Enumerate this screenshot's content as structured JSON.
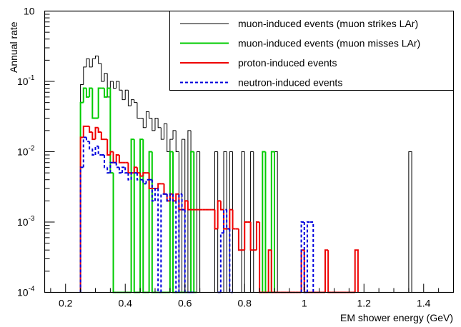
{
  "chart_data": {
    "type": "line",
    "subtype": "step-histogram",
    "title": "",
    "xlabel": "EM shower energy (GeV)",
    "ylabel": "Annual rate",
    "xlim": [
      0.13,
      1.5
    ],
    "ylim": [
      0.0001,
      1
    ],
    "yscale": "log",
    "grid": false,
    "legend_position": "top-right",
    "bin_width": 0.01,
    "x_ticks": [
      "0.2",
      "0.4",
      "0.6",
      "0.8",
      "1",
      "1.2",
      "1.4"
    ],
    "x_tick_values": [
      0.2,
      0.4,
      0.6,
      0.8,
      1.0,
      1.2,
      1.4
    ],
    "y_tick_mantissa": [
      "10",
      "10",
      "10",
      "10",
      "10"
    ],
    "y_tick_exponent": [
      "-4",
      "-3",
      "-2",
      "-1",
      ""
    ],
    "y_tick_values": [
      0.0001,
      0.001,
      0.01,
      0.1,
      1
    ],
    "series": [
      {
        "name": "muon-induced events (muon strikes LAr)",
        "color": "#000000",
        "dash": "solid",
        "bins": [
          [
            0.25,
            0.09
          ],
          [
            0.26,
            0.16
          ],
          [
            0.27,
            0.21
          ],
          [
            0.28,
            0.16
          ],
          [
            0.29,
            0.21
          ],
          [
            0.3,
            0.23
          ],
          [
            0.31,
            0.18
          ],
          [
            0.32,
            0.1
          ],
          [
            0.33,
            0.13
          ],
          [
            0.34,
            0.06
          ],
          [
            0.35,
            0.1
          ],
          [
            0.36,
            0.08
          ],
          [
            0.37,
            0.1
          ],
          [
            0.38,
            0.075
          ],
          [
            0.39,
            0.055
          ],
          [
            0.4,
            0.075
          ],
          [
            0.41,
            0.045
          ],
          [
            0.42,
            0.055
          ],
          [
            0.43,
            0.05
          ],
          [
            0.44,
            0.03
          ],
          [
            0.45,
            0.03
          ],
          [
            0.46,
            0.022
          ],
          [
            0.47,
            0.037
          ],
          [
            0.48,
            0.03
          ],
          [
            0.49,
            0.02
          ],
          [
            0.5,
            0.03
          ],
          [
            0.51,
            0.022
          ],
          [
            0.52,
            0.015
          ],
          [
            0.53,
            0.025
          ],
          [
            0.54,
            0.01
          ],
          [
            0.55,
            0.015
          ],
          [
            0.56,
            0.02
          ],
          [
            0.57,
            0.01
          ],
          [
            0.58,
            0.0001
          ],
          [
            0.59,
            0.015
          ],
          [
            0.6,
            0.0001
          ],
          [
            0.61,
            0.02
          ],
          [
            0.62,
            0.01
          ],
          [
            0.63,
            0.0001
          ],
          [
            0.64,
            0.01
          ],
          [
            0.65,
            0.0001
          ],
          [
            0.66,
            0.0001
          ],
          [
            0.67,
            0.0001
          ],
          [
            0.68,
            0.0001
          ],
          [
            0.69,
            0.0001
          ],
          [
            0.7,
            0.01
          ],
          [
            0.71,
            0.0001
          ],
          [
            0.72,
            0.0001
          ],
          [
            0.73,
            0.01
          ],
          [
            0.74,
            0.0001
          ],
          [
            0.75,
            0.01
          ],
          [
            0.76,
            0.0001
          ],
          [
            0.77,
            0.0001
          ],
          [
            0.78,
            0.0001
          ],
          [
            0.79,
            0.01
          ],
          [
            0.8,
            0.0001
          ],
          [
            0.81,
            0.0001
          ],
          [
            0.82,
            0.01
          ],
          [
            0.83,
            0.0001
          ],
          [
            0.84,
            0.0001
          ],
          [
            0.85,
            0.0001
          ],
          [
            0.86,
            0.0001
          ],
          [
            0.87,
            0.0001
          ],
          [
            0.88,
            0.0001
          ],
          [
            0.89,
            0.0001
          ],
          [
            0.9,
            0.01
          ],
          [
            1.35,
            0.01
          ]
        ]
      },
      {
        "name": "muon-induced events (muon misses LAr)",
        "color": "#00cc00",
        "dash": "solid",
        "bins": [
          [
            0.25,
            0.05
          ],
          [
            0.26,
            0.08
          ],
          [
            0.27,
            0.06
          ],
          [
            0.28,
            0.08
          ],
          [
            0.29,
            0.03
          ],
          [
            0.3,
            0.03
          ],
          [
            0.31,
            0.08
          ],
          [
            0.32,
            0.08
          ],
          [
            0.33,
            0.06
          ],
          [
            0.34,
            0.08
          ],
          [
            0.35,
            0.005
          ],
          [
            0.36,
            0.0001
          ],
          [
            0.37,
            0.0001
          ],
          [
            0.38,
            0.0001
          ],
          [
            0.39,
            0.0001
          ],
          [
            0.4,
            0.0001
          ],
          [
            0.41,
            0.0001
          ],
          [
            0.42,
            0.015
          ],
          [
            0.43,
            0.0001
          ],
          [
            0.44,
            0.0001
          ],
          [
            0.45,
            0.015
          ],
          [
            0.46,
            0.0001
          ],
          [
            0.47,
            0.0001
          ],
          [
            0.48,
            0.01
          ],
          [
            0.49,
            0.0001
          ],
          [
            0.5,
            0.0001
          ],
          [
            0.51,
            0.0001
          ],
          [
            0.52,
            0.0001
          ],
          [
            0.53,
            0.0001
          ],
          [
            0.54,
            0.0001
          ],
          [
            0.55,
            0.01
          ],
          [
            0.56,
            0.0001
          ],
          [
            0.57,
            0.0001
          ],
          [
            0.58,
            0.0001
          ],
          [
            0.59,
            0.0001
          ],
          [
            0.6,
            0.0001
          ],
          [
            0.61,
            0.0001
          ],
          [
            0.62,
            0.01
          ],
          [
            0.63,
            0.0001
          ],
          [
            0.86,
            0.01
          ],
          [
            0.87,
            0.0001
          ],
          [
            0.88,
            0.0001
          ],
          [
            0.89,
            0.01
          ]
        ]
      },
      {
        "name": "proton-induced events",
        "color": "#ee0000",
        "dash": "solid",
        "bins": [
          [
            0.25,
            0.016
          ],
          [
            0.26,
            0.023
          ],
          [
            0.27,
            0.023
          ],
          [
            0.28,
            0.019
          ],
          [
            0.29,
            0.015
          ],
          [
            0.3,
            0.022
          ],
          [
            0.31,
            0.019
          ],
          [
            0.32,
            0.015
          ],
          [
            0.33,
            0.015
          ],
          [
            0.34,
            0.009
          ],
          [
            0.35,
            0.01
          ],
          [
            0.36,
            0.007
          ],
          [
            0.37,
            0.009
          ],
          [
            0.38,
            0.007
          ],
          [
            0.39,
            0.007
          ],
          [
            0.4,
            0.007
          ],
          [
            0.41,
            0.005
          ],
          [
            0.42,
            0.005
          ],
          [
            0.43,
            0.006
          ],
          [
            0.44,
            0.005
          ],
          [
            0.45,
            0.0045
          ],
          [
            0.46,
            0.005
          ],
          [
            0.47,
            0.005
          ],
          [
            0.48,
            0.003
          ],
          [
            0.49,
            0.003
          ],
          [
            0.5,
            0.003
          ],
          [
            0.51,
            0.0035
          ],
          [
            0.52,
            0.0035
          ],
          [
            0.53,
            0.0025
          ],
          [
            0.54,
            0.002
          ],
          [
            0.55,
            0.0025
          ],
          [
            0.56,
            0.002
          ],
          [
            0.57,
            0.0025
          ],
          [
            0.58,
            0.0015
          ],
          [
            0.59,
            0.0015
          ],
          [
            0.6,
            0.002
          ],
          [
            0.61,
            0.0015
          ],
          [
            0.62,
            0.0015
          ],
          [
            0.63,
            0.0015
          ],
          [
            0.64,
            0.0015
          ],
          [
            0.65,
            0.0015
          ],
          [
            0.66,
            0.0015
          ],
          [
            0.67,
            0.0015
          ],
          [
            0.68,
            0.0015
          ],
          [
            0.69,
            0.0015
          ],
          [
            0.7,
            0.0008
          ],
          [
            0.71,
            0.002
          ],
          [
            0.72,
            0.0015
          ],
          [
            0.73,
            0.0008
          ],
          [
            0.74,
            0.0008
          ],
          [
            0.75,
            0.0015
          ],
          [
            0.76,
            0.0008
          ],
          [
            0.77,
            0.0008
          ],
          [
            0.78,
            0.0004
          ],
          [
            0.79,
            0.0004
          ],
          [
            0.8,
            0.001
          ],
          [
            0.81,
            0.001
          ],
          [
            0.82,
            0.0004
          ],
          [
            0.83,
            0.0004
          ],
          [
            0.84,
            0.001
          ],
          [
            0.85,
            0.0001
          ],
          [
            0.86,
            0.0001
          ],
          [
            0.87,
            0.0001
          ],
          [
            0.88,
            0.0004
          ],
          [
            0.89,
            0.0001
          ],
          [
            0.9,
            0.0001
          ],
          [
            0.91,
            0.0001
          ],
          [
            0.92,
            0.0001
          ],
          [
            0.93,
            0.0001
          ],
          [
            0.94,
            0.0001
          ],
          [
            0.95,
            0.0001
          ],
          [
            0.96,
            0.0001
          ],
          [
            0.97,
            0.0001
          ],
          [
            0.98,
            0.0001
          ],
          [
            0.99,
            0.0004
          ],
          [
            1.0,
            0.0001
          ],
          [
            1.01,
            0.0001
          ],
          [
            1.02,
            0.0001
          ],
          [
            1.03,
            0.0001
          ],
          [
            1.04,
            0.0001
          ],
          [
            1.05,
            0.0001
          ],
          [
            1.06,
            0.0001
          ],
          [
            1.07,
            0.0004
          ],
          [
            1.08,
            0.0001
          ],
          [
            1.09,
            0.0001
          ],
          [
            1.1,
            0.0001
          ],
          [
            1.11,
            0.0001
          ],
          [
            1.12,
            0.0001
          ],
          [
            1.13,
            0.0001
          ],
          [
            1.14,
            0.0001
          ],
          [
            1.15,
            0.0001
          ],
          [
            1.16,
            0.0001
          ],
          [
            1.17,
            0.0004
          ]
        ]
      },
      {
        "name": "neutron-induced events",
        "color": "#0000dd",
        "dash": "dashed",
        "bins": [
          [
            0.25,
            0.006
          ],
          [
            0.26,
            0.016
          ],
          [
            0.27,
            0.014
          ],
          [
            0.28,
            0.011
          ],
          [
            0.29,
            0.009
          ],
          [
            0.3,
            0.012
          ],
          [
            0.31,
            0.009
          ],
          [
            0.32,
            0.009
          ],
          [
            0.33,
            0.006
          ],
          [
            0.34,
            0.005
          ],
          [
            0.35,
            0.007
          ],
          [
            0.36,
            0.007
          ],
          [
            0.37,
            0.006
          ],
          [
            0.38,
            0.005
          ],
          [
            0.39,
            0.006
          ],
          [
            0.4,
            0.005
          ],
          [
            0.41,
            0.004
          ],
          [
            0.42,
            0.005
          ],
          [
            0.43,
            0.005
          ],
          [
            0.44,
            0.004
          ],
          [
            0.45,
            0.004
          ],
          [
            0.46,
            0.0035
          ],
          [
            0.47,
            0.004
          ],
          [
            0.48,
            0.004
          ],
          [
            0.49,
            0.002
          ],
          [
            0.5,
            0.003
          ],
          [
            0.51,
            0.0001
          ],
          [
            0.52,
            0.0025
          ],
          [
            0.53,
            0.0025
          ],
          [
            0.54,
            0.002
          ],
          [
            0.55,
            0.0025
          ],
          [
            0.56,
            0.002
          ],
          [
            0.57,
            0.0001
          ],
          [
            0.58,
            0.0025
          ],
          [
            0.59,
            0.0015
          ],
          [
            0.6,
            0.0001
          ],
          [
            0.61,
            0.0001
          ],
          [
            0.62,
            0.0001
          ],
          [
            0.71,
            0.0001
          ],
          [
            0.72,
            0.0007
          ],
          [
            0.73,
            0.0015
          ],
          [
            0.74,
            0.0008
          ],
          [
            0.75,
            0.0001
          ],
          [
            0.99,
            0.001
          ],
          [
            1.0,
            0.0001
          ],
          [
            1.01,
            0.001
          ],
          [
            1.02,
            0.001
          ]
        ]
      }
    ]
  }
}
